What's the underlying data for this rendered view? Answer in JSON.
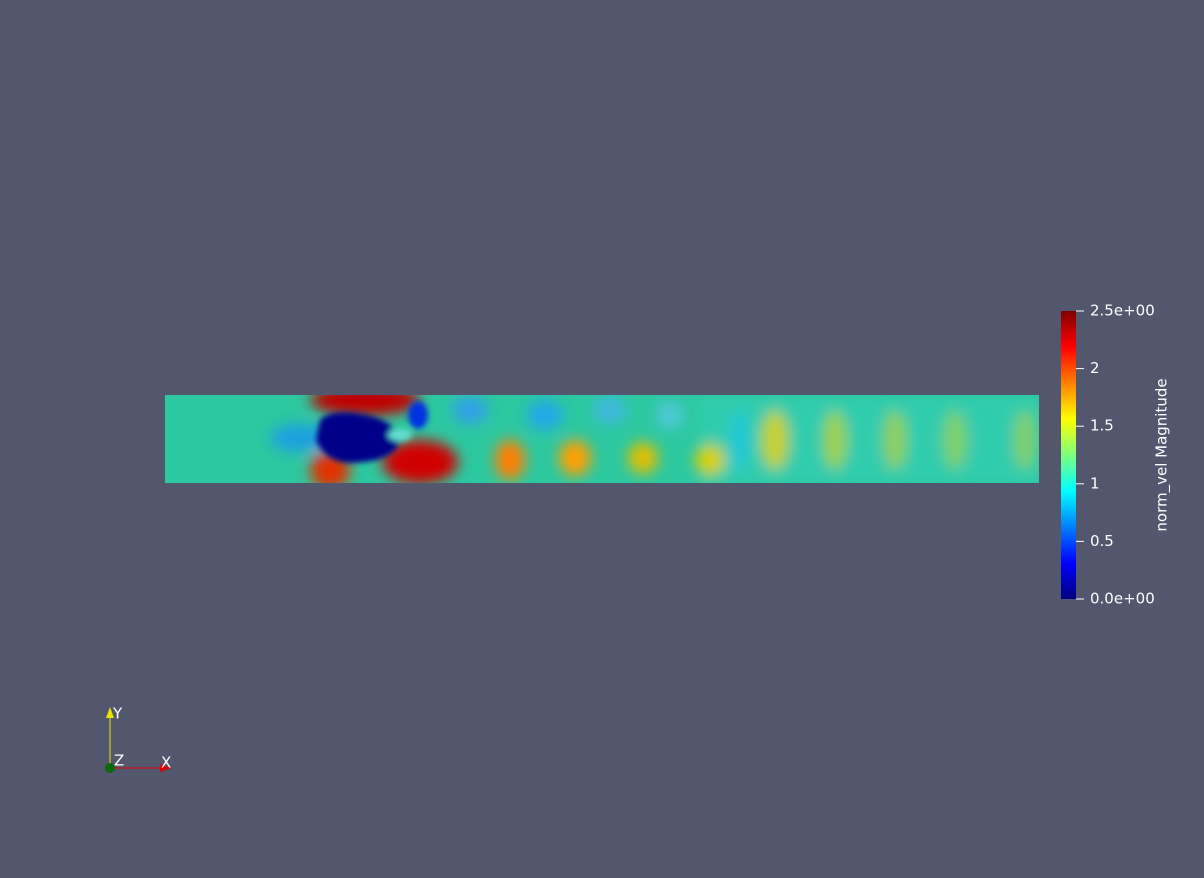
{
  "colorbar": {
    "title": "norm_vel Magnitude",
    "range": [
      0,
      2.5
    ],
    "ticks": [
      {
        "value": 2.5,
        "label": "2.5e+00"
      },
      2,
      1.5,
      1,
      0.5,
      {
        "value": 0,
        "label": "0.0e+00"
      }
    ]
  },
  "axes": {
    "x": "X",
    "y": "Y",
    "z": "Z"
  }
}
